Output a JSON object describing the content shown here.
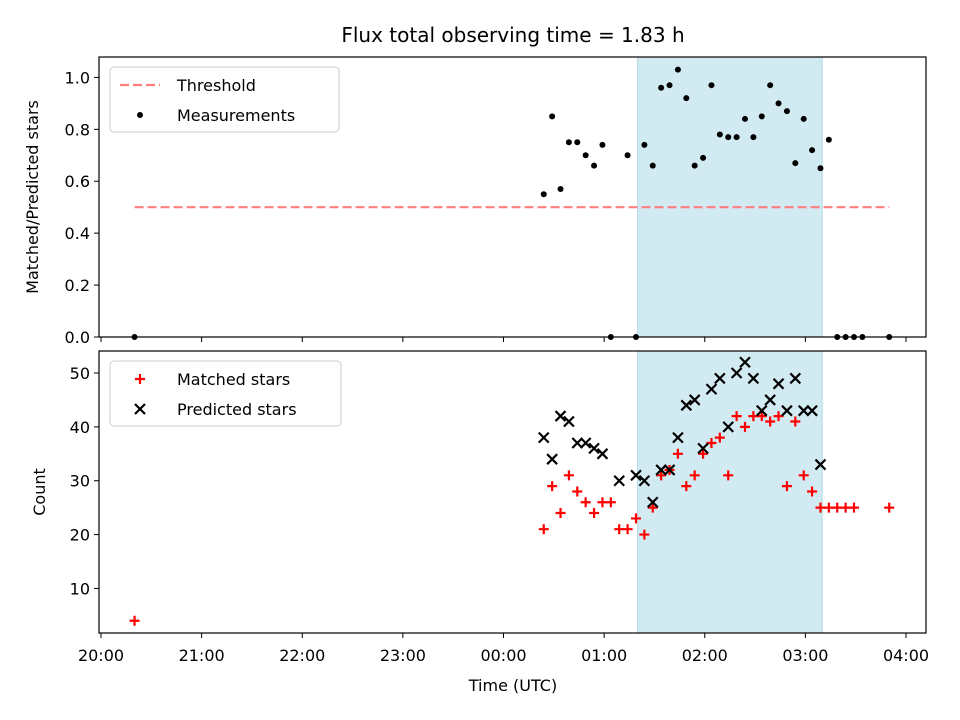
{
  "chart_data": {
    "type": "scatter",
    "title": "Flux total observing time = 1.83 h",
    "xlabel": "Time (UTC)",
    "x_ticks": [
      "20:00",
      "21:00",
      "22:00",
      "23:00",
      "00:00",
      "01:00",
      "02:00",
      "03:00",
      "04:00"
    ],
    "highlight_span": {
      "start": "01:20",
      "end": "03:10",
      "color": "#add8e6"
    },
    "panels": [
      {
        "ylabel": "Matched/Predicted stars",
        "ylim": [
          0,
          1.08
        ],
        "y_ticks": [
          "0.0",
          "0.2",
          "0.4",
          "0.6",
          "0.8",
          "1.0"
        ],
        "legend_position": "top-left",
        "series": [
          {
            "name": "Threshold",
            "kind": "line",
            "style": "dashed",
            "color": "#ff7f7f",
            "x": [
              "20:20",
              "03:50"
            ],
            "y": [
              0.5,
              0.5
            ]
          },
          {
            "name": "Measurements",
            "kind": "dots",
            "color": "#000000",
            "x": [
              "20:20",
              "00:24",
              "00:29",
              "00:34",
              "00:39",
              "00:44",
              "00:49",
              "00:54",
              "00:59",
              "01:04",
              "01:14",
              "01:19",
              "01:24",
              "01:29",
              "01:34",
              "01:39",
              "01:44",
              "01:49",
              "01:54",
              "01:59",
              "02:04",
              "02:09",
              "02:14",
              "02:19",
              "02:24",
              "02:29",
              "02:34",
              "02:39",
              "02:44",
              "02:49",
              "02:54",
              "02:59",
              "03:04",
              "03:09",
              "03:14",
              "03:19",
              "03:24",
              "03:29",
              "03:34",
              "03:50"
            ],
            "y": [
              0,
              0.55,
              0.85,
              0.57,
              0.75,
              0.75,
              0.7,
              0.66,
              0.74,
              0,
              0.7,
              0,
              0.74,
              0.66,
              0.96,
              0.97,
              1.03,
              0.92,
              0.66,
              0.69,
              0.97,
              0.78,
              0.77,
              0.77,
              0.84,
              0.77,
              0.85,
              0.97,
              0.9,
              0.87,
              0.67,
              0.84,
              0.72,
              0.65,
              0.76,
              0,
              0,
              0,
              0,
              0
            ]
          }
        ]
      },
      {
        "ylabel": "Count",
        "ylim": [
          1,
          55
        ],
        "y_ticks": [
          "10",
          "20",
          "30",
          "40",
          "50"
        ],
        "legend_position": "top-left",
        "series": [
          {
            "name": "Matched stars",
            "kind": "plus",
            "color": "#ff0000",
            "x": [
              "20:20",
              "00:24",
              "00:29",
              "00:34",
              "00:39",
              "00:44",
              "00:49",
              "00:54",
              "00:59",
              "01:04",
              "01:09",
              "01:14",
              "01:19",
              "01:24",
              "01:29",
              "01:34",
              "01:39",
              "01:44",
              "01:49",
              "01:54",
              "01:59",
              "02:04",
              "02:09",
              "02:14",
              "02:19",
              "02:24",
              "02:29",
              "02:34",
              "02:39",
              "02:44",
              "02:49",
              "02:54",
              "02:59",
              "03:04",
              "03:09",
              "03:14",
              "03:19",
              "03:24",
              "03:29",
              "03:50"
            ],
            "y": [
              4,
              21,
              29,
              24,
              31,
              28,
              26,
              24,
              26,
              26,
              21,
              21,
              23,
              20,
              25,
              31,
              32,
              35,
              29,
              31,
              35,
              37,
              38,
              31,
              42,
              40,
              42,
              42,
              41,
              42,
              29,
              41,
              31,
              28,
              25,
              25,
              25,
              25,
              25,
              25
            ]
          },
          {
            "name": "Predicted stars",
            "kind": "cross",
            "color": "#000000",
            "x": [
              "00:24",
              "00:29",
              "00:34",
              "00:39",
              "00:44",
              "00:49",
              "00:54",
              "00:59",
              "01:09",
              "01:19",
              "01:24",
              "01:29",
              "01:34",
              "01:39",
              "01:44",
              "01:49",
              "01:54",
              "01:59",
              "02:04",
              "02:09",
              "02:14",
              "02:19",
              "02:24",
              "02:29",
              "02:34",
              "02:39",
              "02:44",
              "02:49",
              "02:54",
              "02:59",
              "03:04",
              "03:09"
            ],
            "y": [
              38,
              34,
              42,
              41,
              37,
              37,
              36,
              35,
              30,
              31,
              30,
              26,
              32,
              32,
              38,
              44,
              45,
              36,
              47,
              49,
              40,
              50,
              52,
              49,
              43,
              45,
              48,
              43,
              49,
              43,
              43,
              33
            ]
          }
        ]
      }
    ]
  }
}
